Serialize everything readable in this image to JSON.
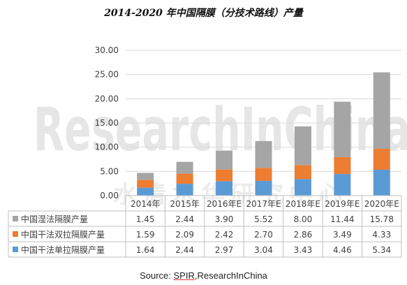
{
  "chart_data": {
    "type": "bar",
    "stacked": true,
    "title": "2014-2020 年中国隔膜（分技术路线）产量",
    "categories": [
      "2014年",
      "2015年",
      "2016年E",
      "2017年E",
      "2018年E",
      "2019年E",
      "2020年E"
    ],
    "ylim": [
      0,
      30
    ],
    "yticks": [
      "0.00",
      "5.00",
      "10.00",
      "15.00",
      "20.00",
      "25.00",
      "30.00"
    ],
    "grid": true,
    "series": [
      {
        "name": "中国干法单拉隔膜产量",
        "color": "#5b9bd5",
        "values": [
          1.64,
          2.44,
          2.97,
          3.04,
          3.43,
          4.46,
          5.34
        ],
        "labels": [
          "1.64",
          "2.44",
          "2.97",
          "3.04",
          "3.43",
          "4.46",
          "5.34"
        ]
      },
      {
        "name": "中国干法双拉隔膜产量",
        "color": "#ed7d31",
        "values": [
          1.59,
          2.09,
          2.42,
          2.7,
          2.86,
          3.49,
          4.33
        ],
        "labels": [
          "1.59",
          "2.09",
          "2.42",
          "2.70",
          "2.86",
          "3.49",
          "4.33"
        ]
      },
      {
        "name": "中国湿法隔膜产量",
        "color": "#a5a5a5",
        "values": [
          1.45,
          2.44,
          3.9,
          5.52,
          8.0,
          11.44,
          15.78
        ],
        "labels": [
          "1.45",
          "2.44",
          "3.90",
          "5.52",
          "8.00",
          "11.44",
          "15.78"
        ]
      }
    ],
    "table_order": [
      2,
      1,
      0
    ]
  },
  "watermark": "ResearchInChina",
  "watermark_cn": "水清木华研究中心",
  "source": {
    "prefix": "Source: ",
    "org": "SPIR",
    "sep": ",",
    "name": "ResearchInChina"
  }
}
